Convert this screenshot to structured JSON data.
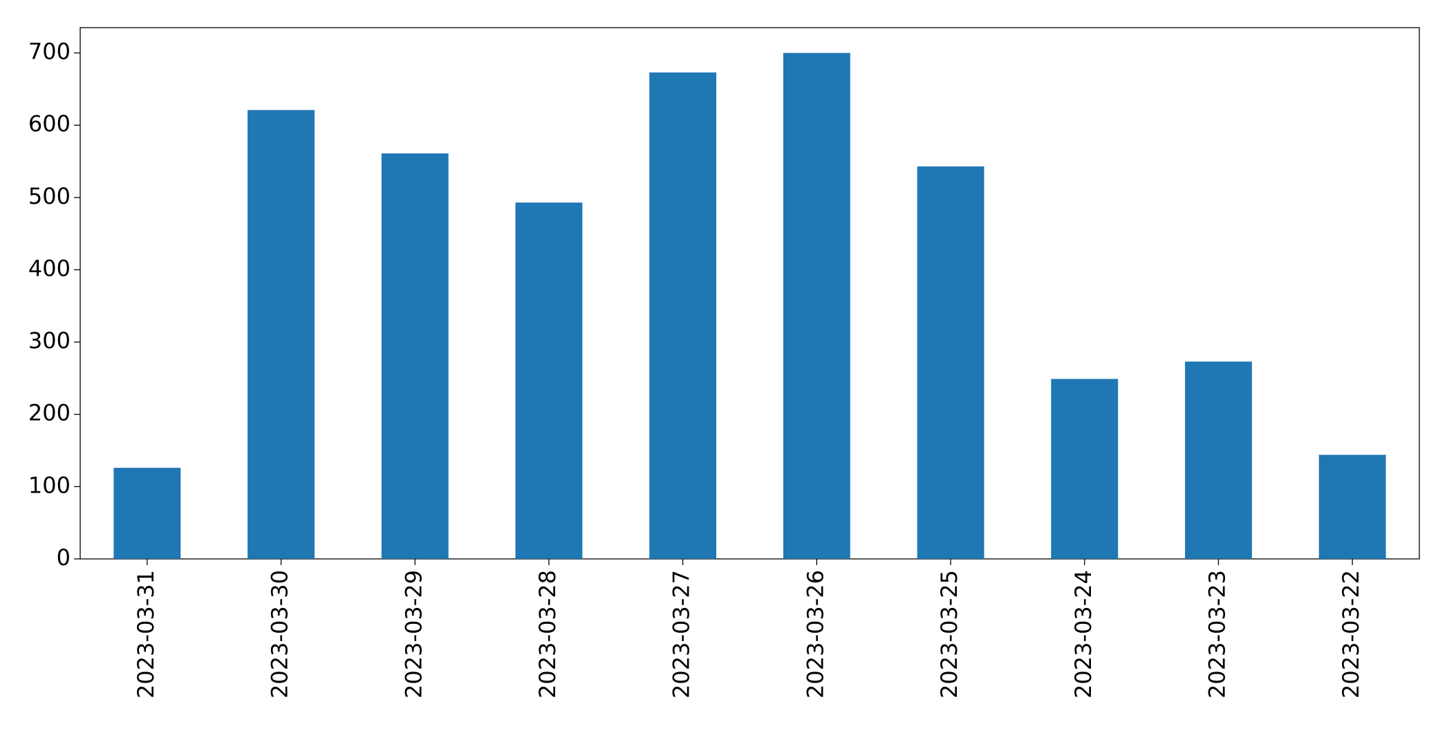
{
  "chart_data": {
    "type": "bar",
    "categories": [
      "2023-03-31",
      "2023-03-30",
      "2023-03-29",
      "2023-03-28",
      "2023-03-27",
      "2023-03-26",
      "2023-03-25",
      "2023-03-24",
      "2023-03-23",
      "2023-03-22"
    ],
    "values": [
      126,
      621,
      561,
      493,
      673,
      700,
      543,
      249,
      273,
      144
    ],
    "color": "#1f77b4",
    "ylim": [
      0,
      735
    ],
    "yticks": [
      0,
      100,
      200,
      300,
      400,
      500,
      600,
      700
    ],
    "grid": false
  }
}
